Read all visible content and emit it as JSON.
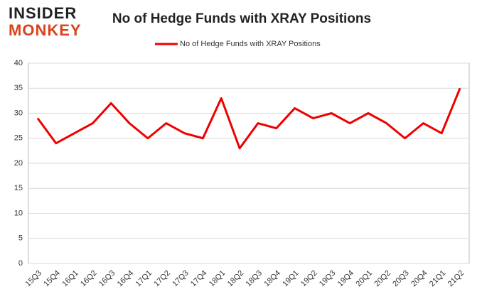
{
  "logo": {
    "line1": "INSIDER",
    "line2": "MONKEY"
  },
  "chart_data": {
    "type": "line",
    "title": "No of Hedge Funds with XRAY Positions",
    "categories": [
      "15Q3",
      "15Q4",
      "16Q1",
      "16Q2",
      "16Q3",
      "16Q4",
      "17Q1",
      "17Q2",
      "17Q3",
      "17Q4",
      "18Q1",
      "18Q2",
      "18Q3",
      "18Q4",
      "19Q1",
      "19Q2",
      "19Q3",
      "19Q4",
      "20Q1",
      "20Q2",
      "20Q3",
      "20Q4",
      "21Q1",
      "21Q2"
    ],
    "series": [
      {
        "name": "No of Hedge Funds with XRAY Positions",
        "color": "#ee0000",
        "values": [
          29,
          24,
          26,
          28,
          32,
          28,
          25,
          28,
          26,
          25,
          33,
          23,
          28,
          27,
          31,
          29,
          30,
          28,
          30,
          28,
          25,
          28,
          26,
          35
        ]
      }
    ],
    "ylim": [
      0,
      40
    ],
    "yticks": [
      0,
      5,
      10,
      15,
      20,
      25,
      30,
      35,
      40
    ],
    "grid": true,
    "legend": "top"
  }
}
